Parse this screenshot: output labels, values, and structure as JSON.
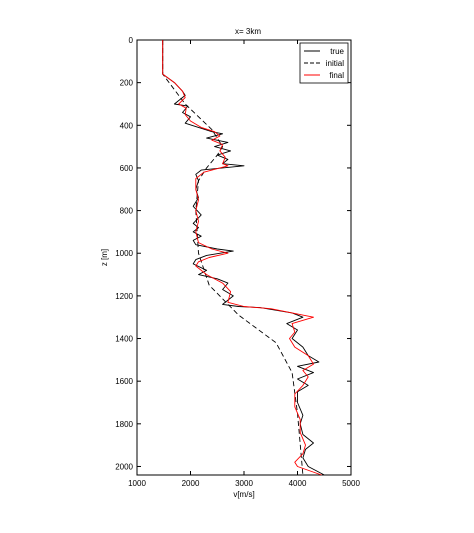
{
  "chart_data": {
    "type": "line",
    "title": "x= 3km",
    "xlabel": "v[m/s]",
    "ylabel": "z [m]",
    "xlim": [
      1000,
      5000
    ],
    "ylim": [
      0,
      2040
    ],
    "y_inverted": true,
    "x_ticks": [
      1000,
      2000,
      3000,
      4000,
      5000
    ],
    "y_ticks": [
      0,
      200,
      400,
      600,
      800,
      1000,
      1200,
      1400,
      1600,
      1800,
      2000
    ],
    "legend_position": "top-right",
    "series": [
      {
        "name": "true",
        "color": "#000000",
        "dash": "solid",
        "points": [
          [
            1480,
            0
          ],
          [
            1480,
            160
          ],
          [
            1700,
            200
          ],
          [
            1850,
            240
          ],
          [
            1900,
            260
          ],
          [
            1700,
            300
          ],
          [
            1950,
            310
          ],
          [
            1850,
            340
          ],
          [
            2000,
            360
          ],
          [
            1900,
            390
          ],
          [
            2150,
            410
          ],
          [
            2400,
            430
          ],
          [
            2600,
            440
          ],
          [
            2300,
            460
          ],
          [
            2700,
            480
          ],
          [
            2450,
            500
          ],
          [
            2750,
            520
          ],
          [
            2500,
            540
          ],
          [
            2700,
            560
          ],
          [
            2600,
            580
          ],
          [
            3000,
            590
          ],
          [
            2200,
            610
          ],
          [
            2100,
            630
          ],
          [
            2150,
            660
          ],
          [
            2100,
            700
          ],
          [
            2150,
            740
          ],
          [
            2050,
            780
          ],
          [
            2200,
            820
          ],
          [
            2050,
            860
          ],
          [
            2150,
            880
          ],
          [
            2050,
            900
          ],
          [
            2200,
            920
          ],
          [
            2050,
            940
          ],
          [
            2100,
            960
          ],
          [
            2500,
            980
          ],
          [
            2800,
            990
          ],
          [
            2300,
            1010
          ],
          [
            2100,
            1030
          ],
          [
            2050,
            1050
          ],
          [
            2300,
            1080
          ],
          [
            2150,
            1100
          ],
          [
            2500,
            1120
          ],
          [
            2700,
            1140
          ],
          [
            2600,
            1170
          ],
          [
            2800,
            1200
          ],
          [
            2600,
            1240
          ],
          [
            2900,
            1250
          ],
          [
            3300,
            1255
          ],
          [
            3900,
            1280
          ],
          [
            4100,
            1300
          ],
          [
            3800,
            1330
          ],
          [
            4000,
            1360
          ],
          [
            3900,
            1400
          ],
          [
            4100,
            1440
          ],
          [
            4200,
            1480
          ],
          [
            4400,
            1510
          ],
          [
            4000,
            1530
          ],
          [
            4300,
            1560
          ],
          [
            4000,
            1590
          ],
          [
            4200,
            1620
          ],
          [
            4000,
            1650
          ],
          [
            4000,
            1700
          ],
          [
            4100,
            1760
          ],
          [
            4050,
            1800
          ],
          [
            4100,
            1850
          ],
          [
            4300,
            1890
          ],
          [
            4150,
            1920
          ],
          [
            4100,
            1960
          ],
          [
            4200,
            2000
          ],
          [
            4500,
            2040
          ]
        ]
      },
      {
        "name": "initial",
        "color": "#000000",
        "dash": "dashed",
        "points": [
          [
            1480,
            0
          ],
          [
            1480,
            160
          ],
          [
            1600,
            200
          ],
          [
            1900,
            300
          ],
          [
            2400,
            420
          ],
          [
            2600,
            500
          ],
          [
            2500,
            540
          ],
          [
            2300,
            600
          ],
          [
            2150,
            660
          ],
          [
            2100,
            800
          ],
          [
            2150,
            1000
          ],
          [
            2350,
            1150
          ],
          [
            2900,
            1290
          ],
          [
            3600,
            1420
          ],
          [
            3900,
            1560
          ],
          [
            4000,
            1750
          ],
          [
            4100,
            2040
          ]
        ]
      },
      {
        "name": "final",
        "color": "#ff0000",
        "dash": "solid",
        "points": [
          [
            1480,
            0
          ],
          [
            1480,
            160
          ],
          [
            1700,
            200
          ],
          [
            1850,
            240
          ],
          [
            1900,
            270
          ],
          [
            1780,
            300
          ],
          [
            1920,
            320
          ],
          [
            1900,
            350
          ],
          [
            2000,
            380
          ],
          [
            2200,
            410
          ],
          [
            2450,
            430
          ],
          [
            2550,
            450
          ],
          [
            2400,
            470
          ],
          [
            2600,
            490
          ],
          [
            2550,
            520
          ],
          [
            2650,
            550
          ],
          [
            2600,
            580
          ],
          [
            2700,
            590
          ],
          [
            2250,
            620
          ],
          [
            2100,
            650
          ],
          [
            2100,
            700
          ],
          [
            2150,
            750
          ],
          [
            2100,
            800
          ],
          [
            2150,
            850
          ],
          [
            2100,
            900
          ],
          [
            2150,
            950
          ],
          [
            2400,
            980
          ],
          [
            2700,
            1000
          ],
          [
            2350,
            1020
          ],
          [
            2150,
            1040
          ],
          [
            2100,
            1060
          ],
          [
            2300,
            1100
          ],
          [
            2600,
            1140
          ],
          [
            2750,
            1180
          ],
          [
            2700,
            1230
          ],
          [
            3000,
            1250
          ],
          [
            3500,
            1260
          ],
          [
            3900,
            1280
          ],
          [
            4300,
            1300
          ],
          [
            3900,
            1330
          ],
          [
            3950,
            1370
          ],
          [
            3850,
            1400
          ],
          [
            3950,
            1440
          ],
          [
            4200,
            1480
          ],
          [
            4300,
            1520
          ],
          [
            4100,
            1550
          ],
          [
            4200,
            1580
          ],
          [
            4100,
            1620
          ],
          [
            3950,
            1660
          ],
          [
            3950,
            1720
          ],
          [
            4050,
            1780
          ],
          [
            4050,
            1840
          ],
          [
            4150,
            1900
          ],
          [
            4100,
            1940
          ],
          [
            3950,
            1980
          ],
          [
            4000,
            2000
          ],
          [
            4450,
            2040
          ]
        ]
      }
    ]
  }
}
